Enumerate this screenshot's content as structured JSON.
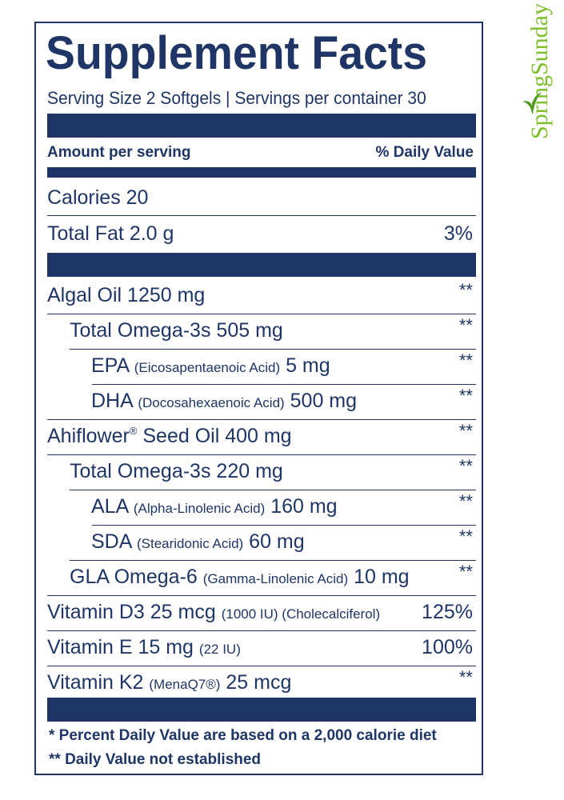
{
  "label": {
    "title": "Supplement Facts",
    "serving_line": "Serving Size 2 Softgels  |  Servings per container 30",
    "header_left": "Amount per serving",
    "header_right": "% Daily Value",
    "rows": [
      {
        "main": "Calories 20",
        "small": "",
        "tail": "",
        "dv": ""
      },
      {
        "main": "Total Fat 2.0 g",
        "small": "",
        "tail": "",
        "dv": "3%"
      },
      {
        "main": "Algal Oil 1250 mg",
        "small": "",
        "tail": "",
        "dv": "**"
      },
      {
        "main": "Total Omega-3s 505 mg",
        "small": "",
        "tail": "",
        "dv": "**"
      },
      {
        "main": "EPA ",
        "small": "(Eicosapentaenoic Acid)",
        "tail": " 5 mg",
        "dv": "**"
      },
      {
        "main": "DHA ",
        "small": "(Docosahexaenoic Acid)",
        "tail": " 500 mg",
        "dv": "**"
      },
      {
        "main": "Ahiflower",
        "sup": "®",
        "tail": " Seed Oil 400 mg",
        "dv": "**"
      },
      {
        "main": "Total Omega-3s 220 mg",
        "small": "",
        "tail": "",
        "dv": "**"
      },
      {
        "main": "ALA ",
        "small": "(Alpha-Linolenic Acid)",
        "tail": " 160 mg",
        "dv": "**"
      },
      {
        "main": "SDA ",
        "small": "(Stearidonic Acid)",
        "tail": " 60 mg",
        "dv": "**"
      },
      {
        "main": "GLA Omega-6 ",
        "small": "(Gamma-Linolenic Acid)",
        "tail": " 10 mg",
        "dv": "**"
      },
      {
        "main": "Vitamin D3 25 mcg ",
        "small": "(1000 IU) (Cholecalciferol)",
        "tail": "",
        "dv": "125%"
      },
      {
        "main": "Vitamin E 15 mg ",
        "small": "(22 IU)",
        "tail": "",
        "dv": "100%"
      },
      {
        "main": "Vitamin K2 ",
        "small": "(MenaQ7®)",
        "tail": " 25 mcg",
        "dv": "**"
      }
    ],
    "footnote_1": "* Percent Daily Value are based on a 2,000 calorie diet",
    "footnote_2": "** Daily Value not established"
  },
  "brand": {
    "name": "SpringSunday",
    "color": "#7bbf2a"
  },
  "colors": {
    "navy": "#1e3566"
  }
}
